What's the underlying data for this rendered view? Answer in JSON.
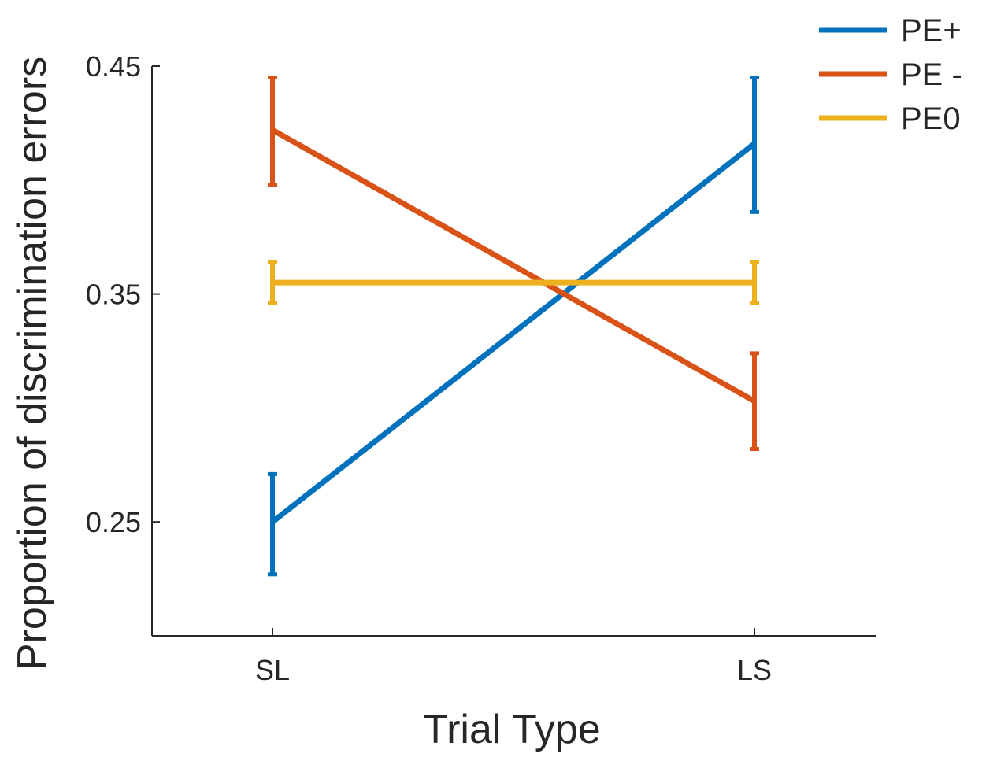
{
  "chart_data": {
    "type": "line",
    "categories": [
      "SL",
      "LS"
    ],
    "xlabel": "Trial Type",
    "ylabel": "Proportion of discrimination errors",
    "ylim": [
      0.2,
      0.45
    ],
    "yticks": [
      0.25,
      0.35,
      0.45
    ],
    "ytick_labels": [
      "0.25",
      "0.35",
      "0.45"
    ],
    "grid": false,
    "legend_position": "top-right",
    "series": [
      {
        "name": "PE+",
        "color": "#0072BD",
        "values": [
          0.25,
          0.416
        ],
        "err_low": [
          0.227,
          0.386
        ],
        "err_high": [
          0.271,
          0.445
        ]
      },
      {
        "name": "PE -",
        "color": "#D95319",
        "values": [
          0.422,
          0.303
        ],
        "err_low": [
          0.398,
          0.282
        ],
        "err_high": [
          0.445,
          0.324
        ]
      },
      {
        "name": "PE0",
        "color": "#EDB120",
        "values": [
          0.355,
          0.355
        ],
        "err_low": [
          0.346,
          0.346
        ],
        "err_high": [
          0.364,
          0.364
        ]
      }
    ]
  }
}
